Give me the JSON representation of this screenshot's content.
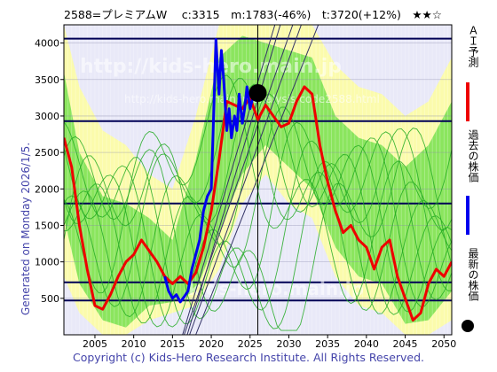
{
  "header": {
    "title": "2588=プレミアムW　 c:3315　m:1783(-46%)　t:3720(+12%)　★★☆"
  },
  "side_caption": "Generated on Monday 2026/1/5.",
  "footer": "Copyright (c) Kids-Hero Research Institute. All Rights Reserved.",
  "watermarks": {
    "url": "http://kids-hero.main.jp",
    "url_small": "http://kids-hero.main.jp/analysis/code2588.html",
    "bottom": "kids-hero.main.jp"
  },
  "legend": [
    {
      "label": "ＡＩ予測",
      "color": "#ee0000",
      "kind": "bar"
    },
    {
      "label": "過去の株価",
      "color": "#0000ee",
      "kind": "bar"
    },
    {
      "label": "最新の株価",
      "color": "#000000",
      "kind": "dot"
    }
  ],
  "colors": {
    "background": "#e9e9f8",
    "band_light": "#ffff99",
    "band_green": "#66dd44",
    "grid": "#000055",
    "prediction": "#ee0000",
    "past": "#0000ee"
  },
  "chart_data": {
    "type": "line",
    "xlim": [
      2001,
      2051
    ],
    "ylim": [
      0,
      4250
    ],
    "x_ticks": [
      2005,
      2010,
      2015,
      2020,
      2025,
      2030,
      2035,
      2040,
      2045,
      2050
    ],
    "y_ticks": [
      500,
      1000,
      1500,
      2000,
      2500,
      3000,
      3500,
      4000
    ],
    "h_lines": [
      470,
      720,
      1800,
      2930,
      4060
    ],
    "current": {
      "x": 2026.0,
      "y": 3315
    },
    "series": [
      {
        "name": "ＡＩ予測",
        "x": [
          2001,
          2002,
          2003,
          2004,
          2005,
          2006,
          2007,
          2008,
          2009,
          2010,
          2011,
          2012,
          2013,
          2014,
          2015,
          2016,
          2017,
          2018,
          2019,
          2020,
          2021,
          2022,
          2023,
          2024,
          2025,
          2026,
          2027,
          2028,
          2029,
          2030,
          2031,
          2032,
          2033,
          2034,
          2035,
          2036,
          2037,
          2038,
          2039,
          2040,
          2041,
          2042,
          2043,
          2044,
          2045,
          2046,
          2047,
          2048,
          2049,
          2050,
          2051
        ],
        "y": [
          2700,
          2300,
          1500,
          900,
          400,
          350,
          550,
          800,
          1000,
          1100,
          1300,
          1150,
          1000,
          800,
          700,
          800,
          700,
          850,
          1200,
          1700,
          2400,
          3200,
          3150,
          3100,
          3250,
          2950,
          3150,
          3000,
          2850,
          2900,
          3200,
          3400,
          3300,
          2600,
          2100,
          1700,
          1400,
          1500,
          1300,
          1200,
          900,
          1200,
          1300,
          800,
          500,
          200,
          300,
          700,
          900,
          800,
          1000
        ]
      },
      {
        "name": "過去の株価",
        "x": [
          2014,
          2014.5,
          2015,
          2015.5,
          2016,
          2016.5,
          2017,
          2017.5,
          2018,
          2018.5,
          2019,
          2019.5,
          2020,
          2020.3,
          2020.6,
          2021,
          2021.3,
          2021.6,
          2022,
          2022.3,
          2022.6,
          2023,
          2023.3,
          2023.6,
          2024,
          2024.3,
          2024.6,
          2025,
          2025.5
        ],
        "y": [
          800,
          600,
          500,
          550,
          450,
          520,
          600,
          900,
          1100,
          1300,
          1700,
          1900,
          2000,
          3000,
          4050,
          3300,
          3900,
          3500,
          2800,
          3100,
          2700,
          3000,
          2800,
          3300,
          2900,
          3100,
          3400,
          3100,
          3315
        ]
      }
    ]
  }
}
